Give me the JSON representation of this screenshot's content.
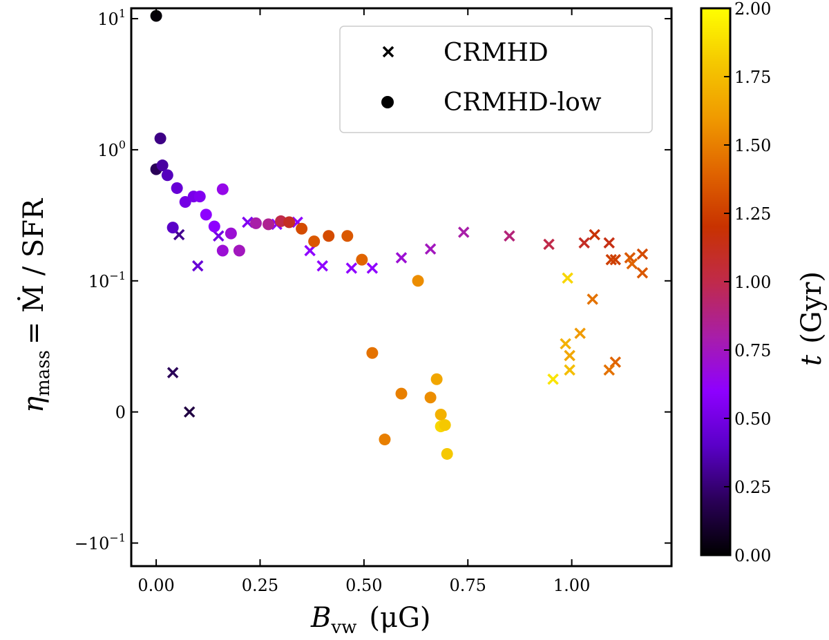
{
  "chart_data": {
    "type": "scatter",
    "xlabel": {
      "symbol": "B",
      "subscript": "vw",
      "unit": "(μG)"
    },
    "ylabel": {
      "symbol": "η",
      "subscript": "mass",
      "rhs": "= Ṁ / SFR"
    },
    "xlim": [
      -0.06,
      1.24
    ],
    "ylim": [
      -0.15,
      12
    ],
    "yscale": "symlog",
    "symlog_linthresh": 0.1,
    "x_ticks": [
      {
        "value": 0.0,
        "label": "0.00"
      },
      {
        "value": 0.25,
        "label": "0.25"
      },
      {
        "value": 0.5,
        "label": "0.50"
      },
      {
        "value": 0.75,
        "label": "0.75"
      },
      {
        "value": 1.0,
        "label": "1.00"
      }
    ],
    "y_ticks": [
      {
        "value": 10,
        "base": "10",
        "exp": "1"
      },
      {
        "value": 1,
        "base": "10",
        "exp": "0"
      },
      {
        "value": 0.1,
        "base": "10",
        "exp": "−1"
      },
      {
        "value": 0,
        "base": "0",
        "exp": ""
      },
      {
        "value": -0.1,
        "base": "−10",
        "exp": "−1"
      }
    ],
    "colorbar": {
      "label_symbol": "t",
      "label_unit": "(Gyr)",
      "range": [
        0,
        2
      ],
      "ticks": [
        "0.00",
        "0.25",
        "0.50",
        "0.75",
        "1.00",
        "1.25",
        "1.50",
        "1.75",
        "2.00"
      ],
      "colormap": "gnuplot",
      "stops": [
        "#000000",
        "#2a0058",
        "#5a00c8",
        "#8e00ff",
        "#a81ea8",
        "#c02a4a",
        "#c83200",
        "#e06400",
        "#f09a00",
        "#f5c800",
        "#ffff00"
      ]
    },
    "legend": {
      "position": "top-right",
      "entries": [
        {
          "marker": "x",
          "label": "CRMHD"
        },
        {
          "marker": "circle",
          "label": "CRMHD-low"
        }
      ]
    },
    "series": [
      {
        "name": "CRMHD",
        "marker": "x",
        "points": [
          {
            "x": 0.04,
            "y": 0.03,
            "t": 0.2
          },
          {
            "x": 0.055,
            "y": 0.225,
            "t": 0.3
          },
          {
            "x": 0.08,
            "y": 0.0,
            "t": 0.15
          },
          {
            "x": 0.1,
            "y": 0.13,
            "t": 0.45
          },
          {
            "x": 0.15,
            "y": 0.22,
            "t": 0.5
          },
          {
            "x": 0.22,
            "y": 0.28,
            "t": 0.55
          },
          {
            "x": 0.29,
            "y": 0.27,
            "t": 0.6
          },
          {
            "x": 0.34,
            "y": 0.28,
            "t": 0.6
          },
          {
            "x": 0.37,
            "y": 0.17,
            "t": 0.6
          },
          {
            "x": 0.4,
            "y": 0.13,
            "t": 0.6
          },
          {
            "x": 0.47,
            "y": 0.125,
            "t": 0.6
          },
          {
            "x": 0.52,
            "y": 0.125,
            "t": 0.6
          },
          {
            "x": 0.59,
            "y": 0.15,
            "t": 0.7
          },
          {
            "x": 0.66,
            "y": 0.175,
            "t": 0.75
          },
          {
            "x": 0.74,
            "y": 0.235,
            "t": 0.8
          },
          {
            "x": 0.85,
            "y": 0.22,
            "t": 0.9
          },
          {
            "x": 0.945,
            "y": 0.19,
            "t": 1.0
          },
          {
            "x": 1.03,
            "y": 0.195,
            "t": 1.1
          },
          {
            "x": 1.055,
            "y": 0.225,
            "t": 1.2
          },
          {
            "x": 1.09,
            "y": 0.195,
            "t": 1.15
          },
          {
            "x": 1.095,
            "y": 0.145,
            "t": 1.25
          },
          {
            "x": 1.105,
            "y": 0.145,
            "t": 1.25
          },
          {
            "x": 1.14,
            "y": 0.15,
            "t": 1.35
          },
          {
            "x": 1.145,
            "y": 0.135,
            "t": 1.4
          },
          {
            "x": 1.17,
            "y": 0.16,
            "t": 1.3
          },
          {
            "x": 1.17,
            "y": 0.115,
            "t": 1.35
          },
          {
            "x": 0.99,
            "y": 0.105,
            "t": 1.85
          },
          {
            "x": 1.05,
            "y": 0.086,
            "t": 1.45
          },
          {
            "x": 1.02,
            "y": 0.06,
            "t": 1.6
          },
          {
            "x": 0.985,
            "y": 0.052,
            "t": 1.7
          },
          {
            "x": 0.995,
            "y": 0.043,
            "t": 1.65
          },
          {
            "x": 0.995,
            "y": 0.032,
            "t": 1.75
          },
          {
            "x": 1.105,
            "y": 0.038,
            "t": 1.4
          },
          {
            "x": 1.09,
            "y": 0.032,
            "t": 1.45
          },
          {
            "x": 0.955,
            "y": 0.025,
            "t": 1.9
          }
        ]
      },
      {
        "name": "CRMHD-low",
        "marker": "circle",
        "points": [
          {
            "x": 0.0,
            "y": 10.5,
            "t": 0.02
          },
          {
            "x": 0.01,
            "y": 1.22,
            "t": 0.28
          },
          {
            "x": 0.0,
            "y": 0.71,
            "t": 0.2
          },
          {
            "x": 0.015,
            "y": 0.76,
            "t": 0.33
          },
          {
            "x": 0.027,
            "y": 0.64,
            "t": 0.38
          },
          {
            "x": 0.04,
            "y": 0.255,
            "t": 0.4
          },
          {
            "x": 0.05,
            "y": 0.51,
            "t": 0.45
          },
          {
            "x": 0.07,
            "y": 0.4,
            "t": 0.5
          },
          {
            "x": 0.09,
            "y": 0.44,
            "t": 0.52
          },
          {
            "x": 0.105,
            "y": 0.44,
            "t": 0.55
          },
          {
            "x": 0.12,
            "y": 0.32,
            "t": 0.6
          },
          {
            "x": 0.14,
            "y": 0.26,
            "t": 0.6
          },
          {
            "x": 0.16,
            "y": 0.5,
            "t": 0.65
          },
          {
            "x": 0.18,
            "y": 0.23,
            "t": 0.7
          },
          {
            "x": 0.16,
            "y": 0.17,
            "t": 0.7
          },
          {
            "x": 0.2,
            "y": 0.17,
            "t": 0.75
          },
          {
            "x": 0.24,
            "y": 0.275,
            "t": 0.8
          },
          {
            "x": 0.27,
            "y": 0.27,
            "t": 0.85
          },
          {
            "x": 0.3,
            "y": 0.285,
            "t": 1.0
          },
          {
            "x": 0.32,
            "y": 0.28,
            "t": 1.1
          },
          {
            "x": 0.35,
            "y": 0.25,
            "t": 1.3
          },
          {
            "x": 0.38,
            "y": 0.2,
            "t": 1.35
          },
          {
            "x": 0.415,
            "y": 0.22,
            "t": 1.3
          },
          {
            "x": 0.46,
            "y": 0.22,
            "t": 1.35
          },
          {
            "x": 0.495,
            "y": 0.145,
            "t": 1.4
          },
          {
            "x": 0.52,
            "y": 0.045,
            "t": 1.45
          },
          {
            "x": 0.63,
            "y": 0.1,
            "t": 1.55
          },
          {
            "x": 0.675,
            "y": 0.025,
            "t": 1.65
          },
          {
            "x": 0.59,
            "y": 0.014,
            "t": 1.5
          },
          {
            "x": 0.66,
            "y": 0.011,
            "t": 1.55
          },
          {
            "x": 0.685,
            "y": -0.002,
            "t": 1.7
          },
          {
            "x": 0.685,
            "y": -0.011,
            "t": 1.85
          },
          {
            "x": 0.695,
            "y": -0.01,
            "t": 1.8
          },
          {
            "x": 0.55,
            "y": -0.021,
            "t": 1.5
          },
          {
            "x": 0.7,
            "y": -0.032,
            "t": 1.8
          }
        ]
      }
    ]
  }
}
